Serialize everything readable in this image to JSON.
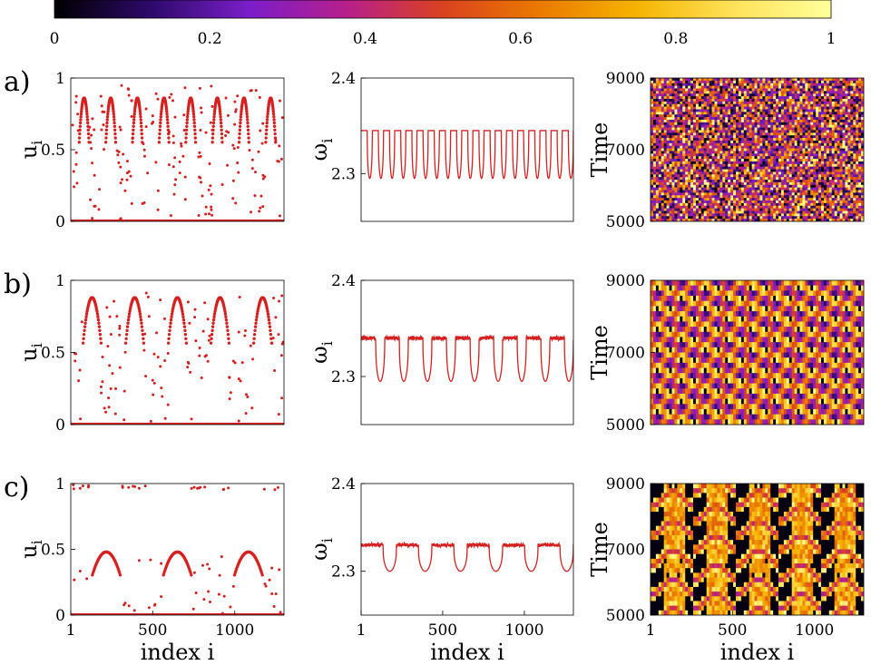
{
  "colorbar": {
    "ticks": [
      "0",
      "0.2",
      "0.4",
      "0.6",
      "0.8",
      "1"
    ],
    "colors": [
      "#000000",
      "#2d0a6b",
      "#7a1ec9",
      "#b61f8c",
      "#d9421f",
      "#ea7a00",
      "#f5b400",
      "#ffe25a",
      "#ffff9a"
    ]
  },
  "rows": [
    {
      "label": "a)",
      "peaks": 8,
      "u_peak": 0.88,
      "u_width": 12,
      "omega_cycles": 19,
      "omega_high": 2.345,
      "omega_low": 2.295,
      "heat_period": 18
    },
    {
      "label": "b)",
      "peaks": 5,
      "u_peak": 0.9,
      "u_width": 22,
      "omega_cycles": 9,
      "omega_high": 2.34,
      "omega_low": 2.295,
      "heat_period": 9
    },
    {
      "label": "c)",
      "peaks": 3,
      "u_peak": 0.5,
      "u_width": 34,
      "omega_cycles": 6,
      "omega_high": 2.33,
      "omega_low": 2.3,
      "heat_period": 5
    }
  ],
  "chart_data": [
    {
      "type": "scatter",
      "panel": "a-u",
      "ylabel": "u",
      "ylabel_sub": "i",
      "xlim": [
        1,
        1300
      ],
      "ylim": [
        0,
        1
      ],
      "yticks": [
        "0",
        "0.5",
        "1"
      ],
      "series_color": "#d62020"
    },
    {
      "type": "line",
      "panel": "a-omega",
      "ylabel": "ω",
      "ylabel_sub": "i",
      "xlim": [
        1,
        1300
      ],
      "ylim": [
        2.25,
        2.4
      ],
      "yticks": [
        "2.3",
        "2.4"
      ],
      "series_color": "#d62020"
    },
    {
      "type": "heatmap",
      "panel": "a-time",
      "ylabel": "Time",
      "xlim": [
        1,
        1300
      ],
      "ylim": [
        5000,
        9000
      ],
      "yticks": [
        "5000",
        "7000",
        "9000"
      ]
    },
    {
      "type": "scatter",
      "panel": "b-u",
      "ylabel": "u",
      "ylabel_sub": "i",
      "xlim": [
        1,
        1300
      ],
      "ylim": [
        0,
        1
      ],
      "yticks": [
        "0",
        "0.5",
        "1"
      ],
      "series_color": "#d62020"
    },
    {
      "type": "line",
      "panel": "b-omega",
      "ylabel": "ω",
      "ylabel_sub": "i",
      "xlim": [
        1,
        1300
      ],
      "ylim": [
        2.25,
        2.4
      ],
      "yticks": [
        "2.3",
        "2.4"
      ],
      "series_color": "#d62020"
    },
    {
      "type": "heatmap",
      "panel": "b-time",
      "ylabel": "Time",
      "xlim": [
        1,
        1300
      ],
      "ylim": [
        5000,
        9000
      ],
      "yticks": [
        "5000",
        "7000",
        "9000"
      ]
    },
    {
      "type": "scatter",
      "panel": "c-u",
      "ylabel": "u",
      "ylabel_sub": "i",
      "xlabel": "index i",
      "xlim": [
        1,
        1300
      ],
      "ylim": [
        0,
        1
      ],
      "xticks": [
        "1",
        "500",
        "1000"
      ],
      "yticks": [
        "0",
        "0.5",
        "1"
      ],
      "series_color": "#d62020"
    },
    {
      "type": "line",
      "panel": "c-omega",
      "ylabel": "ω",
      "ylabel_sub": "i",
      "xlabel": "index i",
      "xlim": [
        1,
        1300
      ],
      "ylim": [
        2.25,
        2.4
      ],
      "xticks": [
        "1",
        "500",
        "1000"
      ],
      "yticks": [
        "2.3",
        "2.4"
      ],
      "series_color": "#d62020"
    },
    {
      "type": "heatmap",
      "panel": "c-time",
      "ylabel": "Time",
      "xlabel": "index i",
      "xlim": [
        1,
        1300
      ],
      "ylim": [
        5000,
        9000
      ],
      "xticks": [
        "1",
        "500",
        "1000"
      ],
      "yticks": [
        "5000",
        "7000",
        "9000"
      ]
    }
  ]
}
